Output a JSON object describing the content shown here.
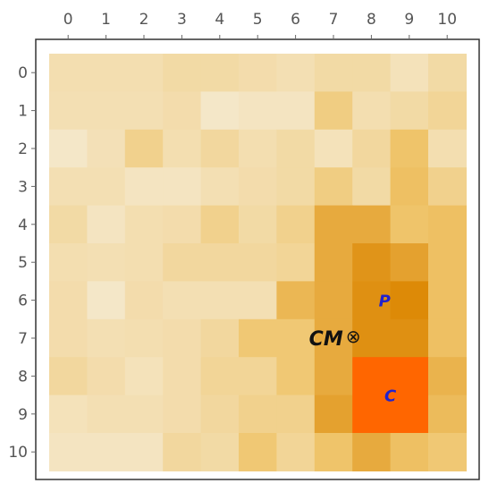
{
  "chart_data": {
    "type": "heatmap",
    "x_labels": [
      "0",
      "1",
      "2",
      "3",
      "4",
      "5",
      "6",
      "7",
      "8",
      "9",
      "10"
    ],
    "y_labels": [
      "0",
      "1",
      "2",
      "3",
      "4",
      "5",
      "6",
      "7",
      "8",
      "9",
      "10"
    ],
    "values": [
      [
        0.15,
        0.15,
        0.15,
        0.18,
        0.18,
        0.16,
        0.14,
        0.18,
        0.18,
        0.12,
        0.18
      ],
      [
        0.14,
        0.14,
        0.14,
        0.16,
        0.08,
        0.1,
        0.1,
        0.28,
        0.15,
        0.18,
        0.22
      ],
      [
        0.08,
        0.13,
        0.25,
        0.15,
        0.2,
        0.15,
        0.18,
        0.12,
        0.2,
        0.35,
        0.15
      ],
      [
        0.14,
        0.14,
        0.1,
        0.1,
        0.14,
        0.16,
        0.18,
        0.28,
        0.18,
        0.38,
        0.25
      ],
      [
        0.18,
        0.1,
        0.15,
        0.16,
        0.25,
        0.18,
        0.25,
        0.55,
        0.55,
        0.35,
        0.38
      ],
      [
        0.15,
        0.14,
        0.15,
        0.2,
        0.2,
        0.2,
        0.22,
        0.55,
        0.72,
        0.62,
        0.38
      ],
      [
        0.16,
        0.08,
        0.16,
        0.14,
        0.14,
        0.14,
        0.45,
        0.55,
        0.75,
        0.8,
        0.38
      ],
      [
        0.16,
        0.14,
        0.15,
        0.16,
        0.2,
        0.32,
        0.32,
        0.55,
        0.75,
        0.75,
        0.38
      ],
      [
        0.2,
        0.16,
        0.12,
        0.16,
        0.22,
        0.22,
        0.32,
        0.55,
        1.0,
        1.0,
        0.48
      ],
      [
        0.12,
        0.14,
        0.14,
        0.16,
        0.2,
        0.25,
        0.25,
        0.62,
        1.0,
        1.0,
        0.42
      ],
      [
        0.1,
        0.1,
        0.1,
        0.2,
        0.18,
        0.32,
        0.22,
        0.35,
        0.55,
        0.38,
        0.32
      ]
    ],
    "color_scale": [
      "#f6f1e4",
      "#efc46a",
      "#dd8a07",
      "#ff6600"
    ],
    "xlabel": "",
    "ylabel": "",
    "title": "",
    "grid": false,
    "legend": "none",
    "annotations": [
      {
        "label": "P",
        "col": 8.35,
        "row": 6,
        "color": "#2222cc"
      },
      {
        "label": "C",
        "col": 8.5,
        "row": 8.5,
        "color": "#2222cc"
      },
      {
        "label": "CM",
        "symbol": "⊗",
        "col": 7.3,
        "row": 7,
        "color": "#111111"
      }
    ]
  }
}
